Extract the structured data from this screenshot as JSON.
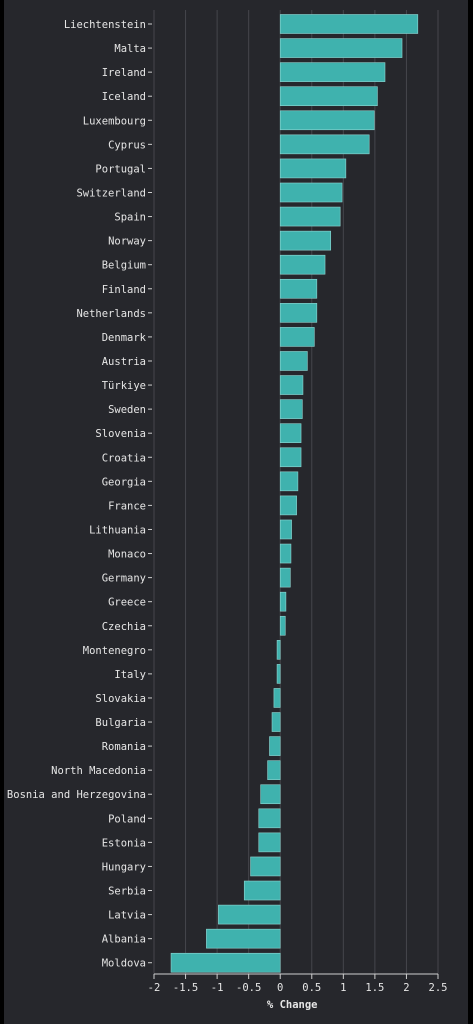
{
  "chart_data": {
    "type": "bar",
    "orientation": "horizontal",
    "categories": [
      "Liechtenstein",
      "Malta",
      "Ireland",
      "Iceland",
      "Luxembourg",
      "Cyprus",
      "Portugal",
      "Switzerland",
      "Spain",
      "Norway",
      "Belgium",
      "Finland",
      "Netherlands",
      "Denmark",
      "Austria",
      "Türkiye",
      "Sweden",
      "Slovenia",
      "Croatia",
      "Georgia",
      "France",
      "Lithuania",
      "Monaco",
      "Germany",
      "Greece",
      "Czechia",
      "Montenegro",
      "Italy",
      "Slovakia",
      "Bulgaria",
      "Romania",
      "North Macedonia",
      "Bosnia and Herzegovina",
      "Poland",
      "Estonia",
      "Hungary",
      "Serbia",
      "Latvia",
      "Albania",
      "Moldova"
    ],
    "values": [
      2.18,
      1.93,
      1.66,
      1.54,
      1.49,
      1.41,
      1.04,
      0.98,
      0.95,
      0.8,
      0.71,
      0.58,
      0.58,
      0.54,
      0.43,
      0.36,
      0.35,
      0.33,
      0.33,
      0.28,
      0.26,
      0.18,
      0.17,
      0.16,
      0.09,
      0.08,
      -0.05,
      -0.05,
      -0.1,
      -0.13,
      -0.17,
      -0.2,
      -0.31,
      -0.34,
      -0.34,
      -0.47,
      -0.57,
      -0.98,
      -1.17,
      -1.73
    ],
    "xlabel": "% Change",
    "ylabel": "",
    "xlim": [
      -2,
      2.5
    ],
    "xticks": [
      -2,
      -1.5,
      -1,
      -0.5,
      0,
      0.5,
      1,
      1.5,
      2,
      2.5
    ],
    "xtick_labels": [
      "-2",
      "-1.5",
      "-1",
      "-0.5",
      "0",
      "0.5",
      "1",
      "1.5",
      "2",
      "2.5"
    ],
    "grid": "vertical",
    "colors": {
      "bar": "#3fb2ae",
      "bar_stroke": "#8fd6d2",
      "background": "#26272c",
      "grid": "#45464c",
      "text": "#e6e6e6"
    }
  }
}
